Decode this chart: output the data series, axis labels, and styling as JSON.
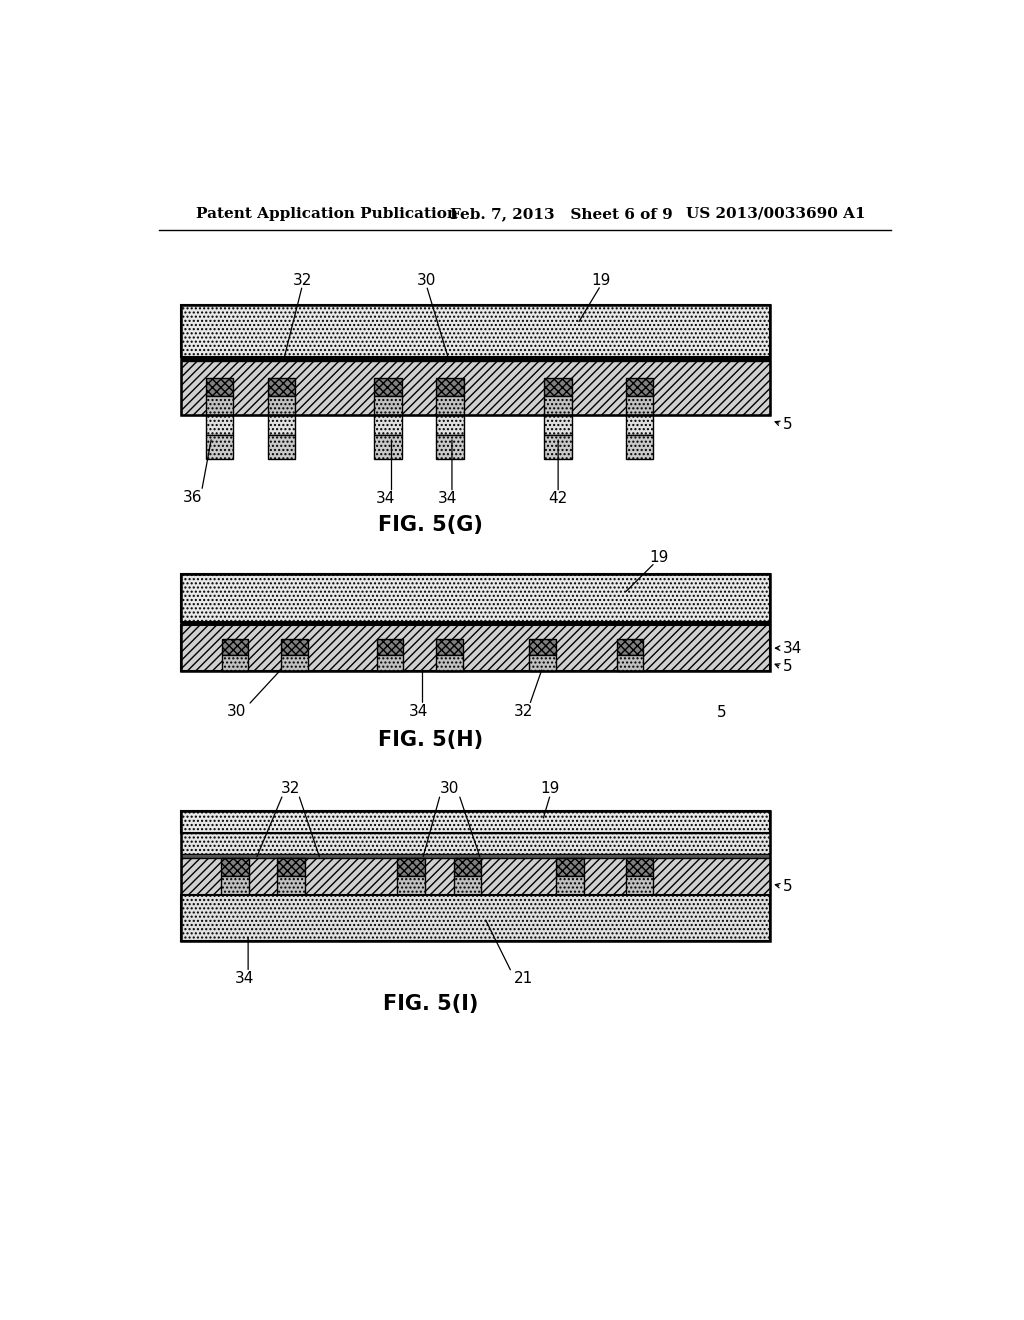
{
  "header_left": "Patent Application Publication",
  "header_mid": "Feb. 7, 2013   Sheet 6 of 9",
  "header_right": "US 2013/0033690 A1",
  "fig_g_label": "FIG. 5(G)",
  "fig_h_label": "FIG. 5(H)",
  "fig_i_label": "FIG. 5(I)",
  "bg_color": "#ffffff"
}
